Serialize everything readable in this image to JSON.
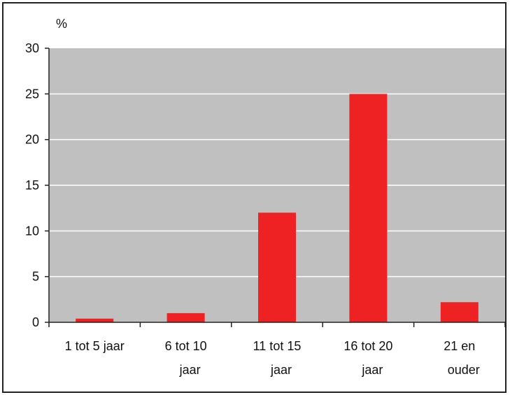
{
  "chart_data": {
    "type": "bar",
    "y_unit": "%",
    "categories": [
      [
        "1 tot 5 jaar"
      ],
      [
        "6  tot 10",
        "jaar"
      ],
      [
        "11 tot 15",
        "jaar"
      ],
      [
        "16 tot 20",
        "jaar"
      ],
      [
        "21 en",
        "ouder"
      ]
    ],
    "values": [
      0.4,
      1.0,
      12.0,
      25.0,
      2.2
    ],
    "ylim": [
      0,
      30
    ],
    "yticks": [
      0,
      5,
      10,
      15,
      20,
      25,
      30
    ],
    "grid": true,
    "colors": {
      "bar": "#ee2222",
      "plot_bg": "#c0c0c0",
      "grid": "#ffffff"
    }
  }
}
